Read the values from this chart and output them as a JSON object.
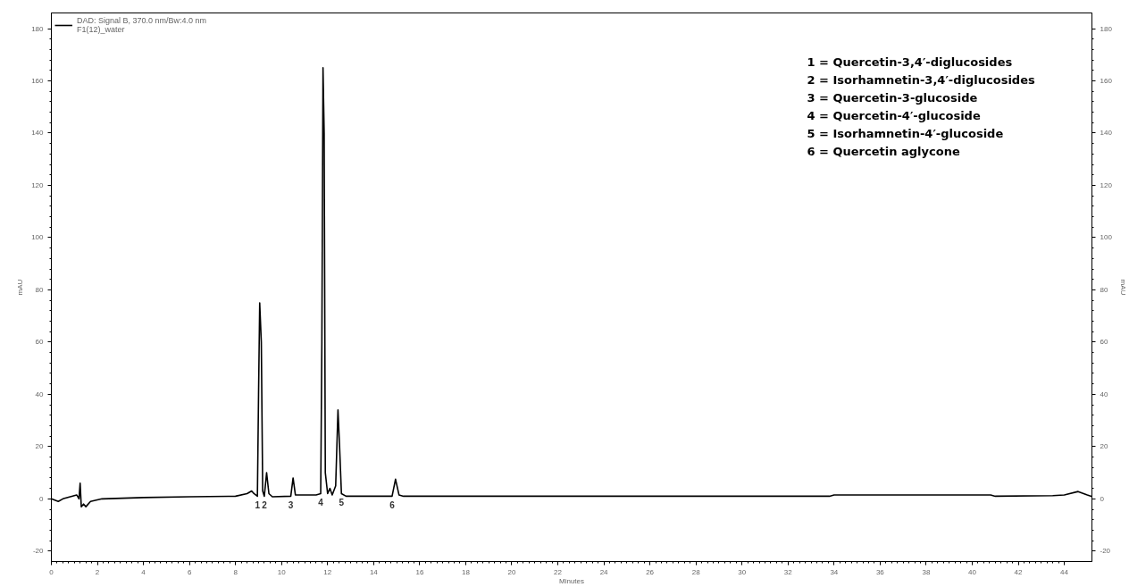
{
  "chart_data": {
    "type": "line",
    "xlabel": "Minutes",
    "ylabel": "mAU",
    "y2label": "mAU",
    "xlim": [
      0,
      45.2
    ],
    "ylim": [
      -24,
      186
    ],
    "y2lim": [
      -24,
      186
    ],
    "xticks": [
      0,
      2,
      4,
      6,
      8,
      10,
      12,
      14,
      16,
      18,
      20,
      22,
      24,
      26,
      28,
      30,
      32,
      34,
      36,
      38,
      40,
      42,
      44
    ],
    "yticks": [
      -20,
      0,
      20,
      40,
      60,
      80,
      100,
      120,
      140,
      160,
      180
    ],
    "y2ticks": [
      -20,
      0,
      20,
      40,
      60,
      80,
      100,
      120,
      140,
      160,
      180
    ],
    "grid": false,
    "legend": "top left",
    "marker": "none",
    "line_style": "solid",
    "series": [
      {
        "name": "DAD: Signal B, 370.0 nm/Bw:4.0 nm\nF1(12)_water",
        "color": "#000000",
        "x": [
          0,
          0.3,
          0.5,
          1.1,
          1.2,
          1.25,
          1.3,
          1.4,
          1.5,
          1.7,
          2.2,
          4,
          6,
          8,
          8.5,
          8.7,
          8.8,
          8.95,
          9.0,
          9.05,
          9.12,
          9.18,
          9.25,
          9.35,
          9.45,
          9.6,
          10.4,
          10.5,
          10.6,
          11.5,
          11.7,
          11.75,
          11.8,
          11.85,
          11.9,
          12.0,
          12.1,
          12.2,
          12.35,
          12.45,
          12.52,
          12.6,
          12.8,
          14.8,
          14.95,
          15.1,
          15.3,
          33.8,
          34,
          40.8,
          41,
          43.5,
          44,
          44.6,
          45,
          45.2
        ],
        "values": [
          0,
          -1,
          0,
          1.5,
          0,
          6,
          -3,
          -2,
          -3,
          -1,
          0,
          0.5,
          0.8,
          1,
          2,
          3,
          2,
          1,
          40,
          75,
          60,
          3,
          1,
          10,
          2,
          0.8,
          1,
          8,
          1.5,
          1.5,
          2,
          60,
          165,
          140,
          10,
          2,
          4,
          1.5,
          5,
          34,
          20,
          2,
          1,
          1,
          7.5,
          1.5,
          1,
          1,
          1.5,
          1.5,
          1,
          1.2,
          1.5,
          2.8,
          1.5,
          0.9
        ]
      }
    ],
    "annotations": [
      {
        "text": "1",
        "x": 8.95,
        "y": 1
      },
      {
        "text": "2",
        "x": 9.25,
        "y": 1
      },
      {
        "text": "3",
        "x": 10.4,
        "y": 1
      },
      {
        "text": "4",
        "x": 11.7,
        "y": 2
      },
      {
        "text": "5",
        "x": 12.6,
        "y": 2
      },
      {
        "text": "6",
        "x": 14.8,
        "y": 1
      },
      "1 = Quercetin-3,4′-diglucosides",
      "2 = Isorhamnetin-3,4′-diglucosides",
      "3 = Quercetin-3-glucoside",
      "4 = Quercetin-4′-glucoside",
      "5 = Isorhamnetin-4′-glucoside",
      "6 = Quercetin aglycone"
    ]
  }
}
